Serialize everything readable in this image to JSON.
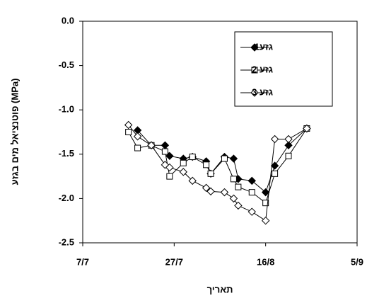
{
  "chart_data": {
    "type": "line",
    "y_label": "פוטנציאל מים בגזע (MPa)",
    "x_label": "תאריך",
    "x": [
      "17/7",
      "19/7",
      "22/7",
      "25/7",
      "26/7",
      "29/7",
      "31/7",
      "3/8",
      "4/8",
      "7/8",
      "9/8",
      "10/8",
      "13/8",
      "16/8",
      "18/8",
      "21/8",
      "25/8"
    ],
    "series": [
      {
        "name": "גזע1",
        "color": "#000000",
        "marker": "filled-diamond",
        "values": [
          null,
          -1.23,
          -1.4,
          -1.4,
          -1.52,
          -1.55,
          -1.53,
          -1.58,
          -1.72,
          -1.53,
          -1.55,
          -1.78,
          -1.8,
          -1.93,
          -1.63,
          -1.4,
          -1.21
        ]
      },
      {
        "name": "גזע 2",
        "color": "#000000",
        "marker": "open-square",
        "values": [
          -1.25,
          -1.43,
          -1.4,
          -1.47,
          -1.75,
          -1.6,
          -1.53,
          -1.62,
          -1.72,
          -1.55,
          -1.78,
          -1.87,
          -1.93,
          -2.05,
          -1.72,
          -1.52,
          -1.21
        ]
      },
      {
        "name": "גזע 3",
        "color": "#000000",
        "marker": "open-diamond",
        "values": [
          -1.17,
          -1.3,
          -1.4,
          -1.62,
          -1.65,
          -1.7,
          -1.8,
          -1.88,
          -1.92,
          -1.93,
          -2.0,
          -2.08,
          -2.15,
          -2.25,
          -1.33,
          -1.33,
          -1.21
        ]
      }
    ],
    "xlim": [
      "7/7",
      "5/9"
    ],
    "xticks": [
      "7/7",
      "27/7",
      "16/8",
      "5/9"
    ],
    "ylim": [
      -2.5,
      0
    ],
    "yticks": [
      {
        "value": 0,
        "label": "0.0"
      },
      -0.5,
      {
        "value": -1,
        "label": "-1.0"
      },
      -1.5,
      {
        "value": -2,
        "label": "-2.0"
      },
      -2.5
    ],
    "legend": "top-right"
  }
}
